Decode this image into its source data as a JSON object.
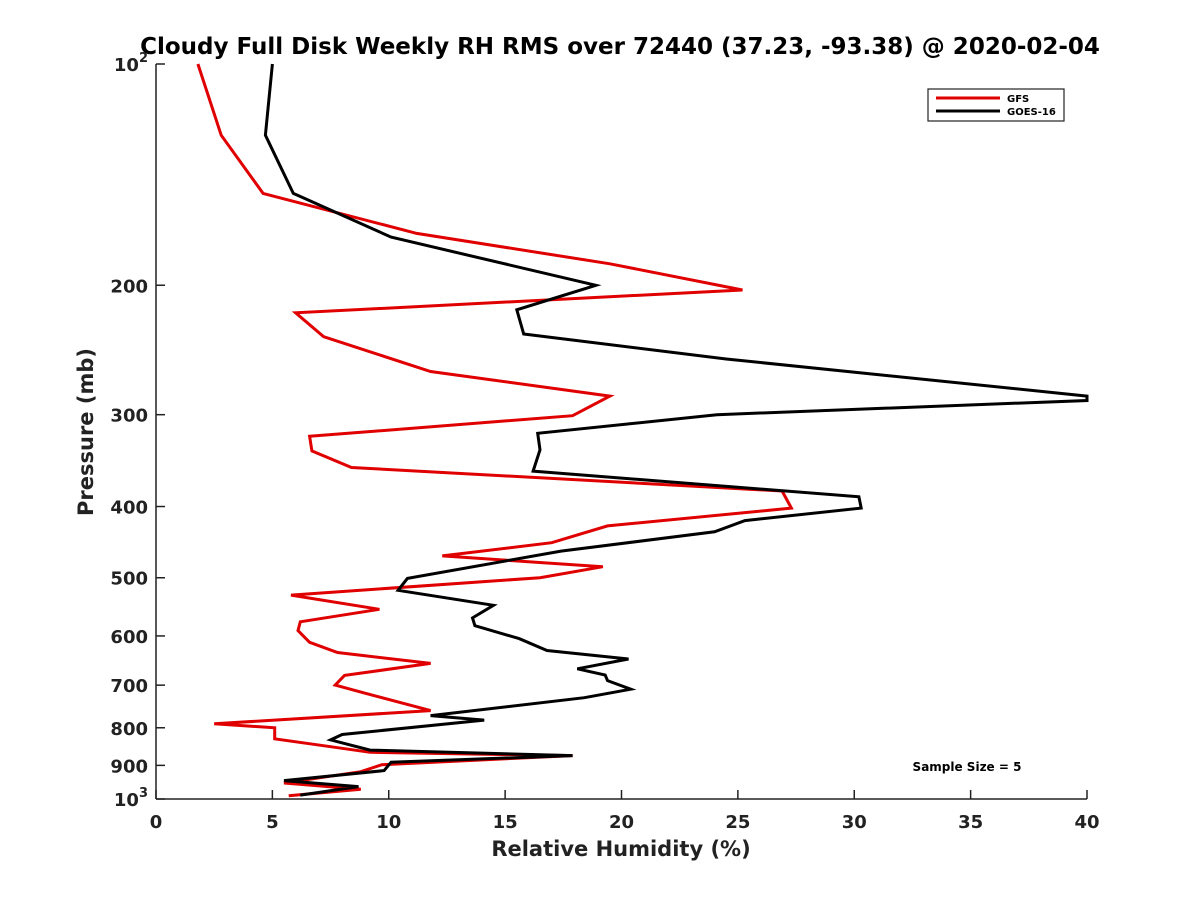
{
  "chart_data": {
    "type": "line",
    "title": "Cloudy Full Disk Weekly RH RMS over 72440 (37.23, -93.38) @ 2020-02-04",
    "xlabel": "Relative Humidity (%)",
    "ylabel": "Pressure (mb)",
    "xlim": [
      0,
      40
    ],
    "ylim": [
      100,
      1000
    ],
    "y_scale": "log",
    "y_direction": "reversed",
    "grid": false,
    "legend_position": "top-right",
    "x_ticks": [
      0,
      5,
      10,
      15,
      20,
      25,
      30,
      35,
      40
    ],
    "x_tick_labels": [
      "0",
      "5",
      "10",
      "15",
      "20",
      "25",
      "30",
      "35",
      "40"
    ],
    "y_ticks": [
      100,
      200,
      300,
      400,
      500,
      600,
      700,
      800,
      900,
      1000
    ],
    "y_tick_labels": [
      {
        "base": "10",
        "exp": "2"
      },
      {
        "base": "200"
      },
      {
        "base": "300"
      },
      {
        "base": "400"
      },
      {
        "base": "500"
      },
      {
        "base": "600"
      },
      {
        "base": "700"
      },
      {
        "base": "800"
      },
      {
        "base": "900"
      },
      {
        "base": "10",
        "exp": "3"
      }
    ],
    "series": [
      {
        "name": "GFS",
        "color": "#e00000",
        "points": [
          [
            1.8,
            100
          ],
          [
            2.8,
            125
          ],
          [
            4.6,
            150
          ],
          [
            11.2,
            170
          ],
          [
            19.5,
            187
          ],
          [
            25.2,
            203
          ],
          [
            6.0,
            218
          ],
          [
            7.2,
            235
          ],
          [
            11.8,
            262
          ],
          [
            19.5,
            283
          ],
          [
            17.9,
            301
          ],
          [
            6.6,
            321
          ],
          [
            6.7,
            336
          ],
          [
            8.4,
            354
          ],
          [
            26.9,
            381
          ],
          [
            27.3,
            402
          ],
          [
            19.4,
            425
          ],
          [
            17.0,
            448
          ],
          [
            12.3,
            467
          ],
          [
            19.2,
            483
          ],
          [
            16.5,
            500
          ],
          [
            5.8,
            528
          ],
          [
            9.6,
            552
          ],
          [
            6.2,
            574
          ],
          [
            6.1,
            590
          ],
          [
            6.6,
            612
          ],
          [
            7.8,
            632
          ],
          [
            11.8,
            654
          ],
          [
            8.1,
            679
          ],
          [
            7.7,
            700
          ],
          [
            9.0,
            718
          ],
          [
            11.8,
            758
          ],
          [
            2.5,
            790
          ],
          [
            5.1,
            800
          ],
          [
            5.1,
            828
          ],
          [
            7.5,
            849
          ],
          [
            9.2,
            864
          ],
          [
            17.9,
            873
          ],
          [
            9.7,
            898
          ],
          [
            8.8,
            918
          ],
          [
            5.5,
            951
          ],
          [
            8.8,
            970
          ],
          [
            5.7,
            990
          ]
        ]
      },
      {
        "name": "GOES-16",
        "color": "#000000",
        "points": [
          [
            5.0,
            100
          ],
          [
            4.7,
            125
          ],
          [
            5.9,
            150
          ],
          [
            10.1,
            172
          ],
          [
            18.9,
            200
          ],
          [
            15.5,
            216
          ],
          [
            15.8,
            233
          ],
          [
            24.5,
            252
          ],
          [
            40.0,
            283
          ],
          [
            40.0,
            287
          ],
          [
            24.1,
            300
          ],
          [
            16.4,
            318
          ],
          [
            16.5,
            335
          ],
          [
            16.2,
            358
          ],
          [
            30.2,
            388
          ],
          [
            30.3,
            402
          ],
          [
            25.3,
            418
          ],
          [
            24.0,
            433
          ],
          [
            17.4,
            460
          ],
          [
            10.8,
            501
          ],
          [
            10.4,
            520
          ],
          [
            14.5,
            545
          ],
          [
            13.6,
            567
          ],
          [
            13.7,
            581
          ],
          [
            15.6,
            605
          ],
          [
            16.8,
            628
          ],
          [
            20.3,
            645
          ],
          [
            18.1,
            665
          ],
          [
            19.3,
            678
          ],
          [
            19.4,
            690
          ],
          [
            20.4,
            709
          ],
          [
            18.4,
            728
          ],
          [
            11.8,
            770
          ],
          [
            14.1,
            781
          ],
          [
            8.0,
            817
          ],
          [
            7.5,
            831
          ],
          [
            9.2,
            858
          ],
          [
            17.9,
            873
          ],
          [
            10.1,
            891
          ],
          [
            9.8,
            915
          ],
          [
            5.5,
            944
          ],
          [
            8.7,
            962
          ],
          [
            6.2,
            988
          ]
        ]
      }
    ],
    "annotations": [
      "Sample Size = 5"
    ]
  }
}
